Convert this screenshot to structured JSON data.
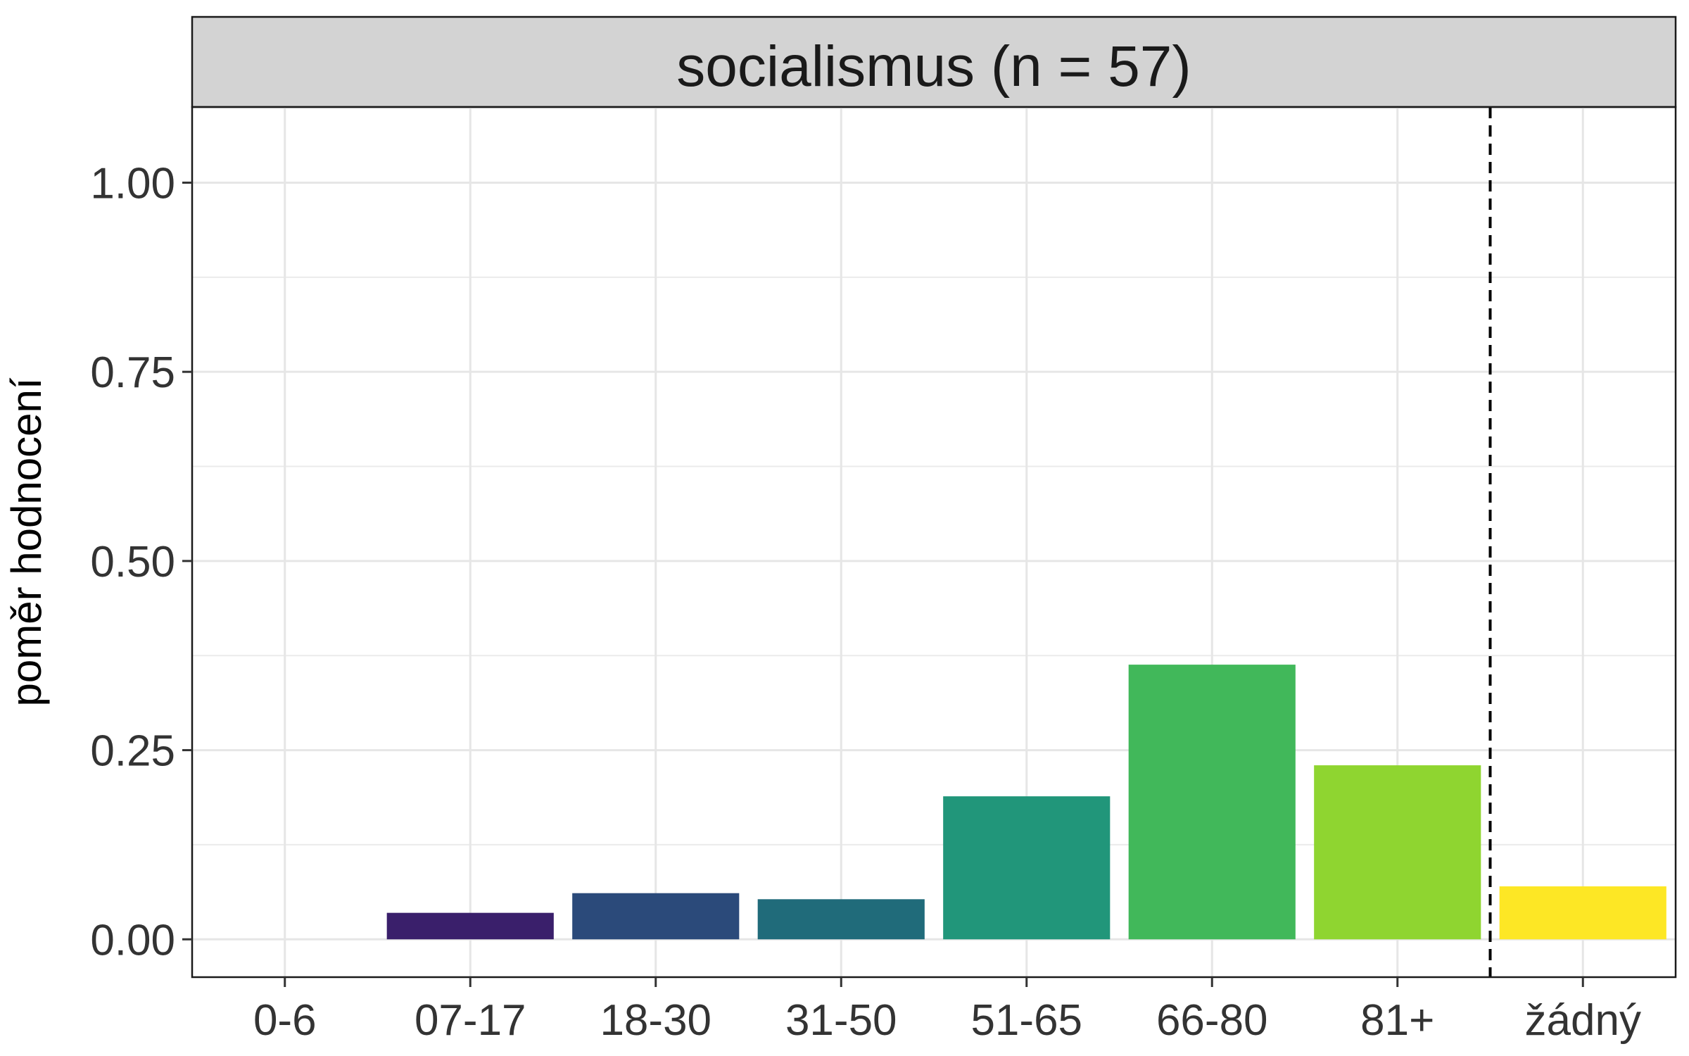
{
  "chart_data": {
    "type": "bar",
    "title": "socialismus (n = 57)",
    "xlabel": "",
    "ylabel": "poměr hodnocení",
    "categories": [
      "0-6",
      "07-17",
      "18-30",
      "31-50",
      "51-65",
      "66-80",
      "81+",
      "žádný"
    ],
    "values": [
      0.0,
      0.035,
      0.061,
      0.053,
      0.189,
      0.363,
      0.23,
      0.07
    ],
    "colors": [
      "#440154",
      "#3a1f6b",
      "#2b4a7a",
      "#206b7a",
      "#21967a",
      "#41b85a",
      "#8fd530",
      "#fde725"
    ],
    "yticks": [
      "0.00",
      "0.25",
      "0.50",
      "0.75",
      "1.00"
    ],
    "ylim": [
      -0.05,
      1.1
    ],
    "grid": true,
    "reference_line": {
      "style": "dashed",
      "between": [
        "81+",
        "žádný"
      ]
    },
    "legend": "none"
  }
}
